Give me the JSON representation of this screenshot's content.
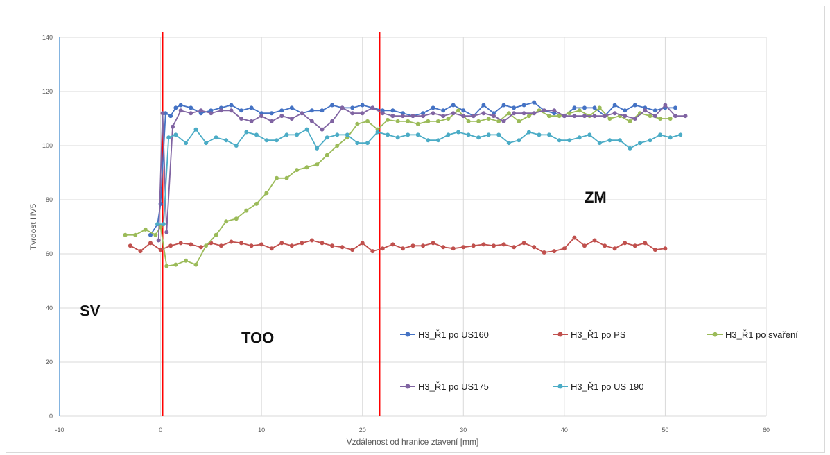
{
  "chart_data": {
    "type": "line",
    "xlabel": "Vzdálenost od hranice ztavení [mm]",
    "ylabel": "Tvrdost HV5",
    "xlim": [
      -10,
      60
    ],
    "ylim": [
      0,
      140
    ],
    "xticks": [
      "-10",
      "0",
      "10",
      "20",
      "30",
      "40",
      "50",
      "60"
    ],
    "yticks": [
      "0",
      "20",
      "40",
      "60",
      "80",
      "100",
      "120",
      "140"
    ],
    "grid": true,
    "legend_position": "bottom-right",
    "vertical_lines": [
      0.2,
      21.7
    ],
    "zone_labels": [
      {
        "text": "SV",
        "x": -8,
        "y": 37
      },
      {
        "text": "TOO",
        "x": 8,
        "y": 27
      },
      {
        "text": "ZM",
        "x": 42,
        "y": 79
      }
    ],
    "series": [
      {
        "name": "H3_Ř1 po US160",
        "color": "#4472c4",
        "points": [
          [
            -1,
            67
          ],
          [
            -0.3,
            71
          ],
          [
            0,
            78.5
          ],
          [
            0.5,
            112
          ],
          [
            1,
            111
          ],
          [
            1.5,
            114
          ],
          [
            2,
            115
          ],
          [
            3,
            114
          ],
          [
            4,
            112
          ],
          [
            5,
            113
          ],
          [
            6,
            114
          ],
          [
            7,
            115
          ],
          [
            8,
            113
          ],
          [
            9,
            114
          ],
          [
            10,
            112
          ],
          [
            11,
            112
          ],
          [
            12,
            113
          ],
          [
            13,
            114
          ],
          [
            14,
            112
          ],
          [
            15,
            113
          ],
          [
            16,
            113
          ],
          [
            17,
            115
          ],
          [
            18,
            114
          ],
          [
            19,
            114
          ],
          [
            20,
            115
          ],
          [
            21,
            114
          ],
          [
            22,
            113
          ],
          [
            23,
            113
          ],
          [
            24,
            112
          ],
          [
            25,
            111
          ],
          [
            26,
            112
          ],
          [
            27,
            114
          ],
          [
            28,
            113
          ],
          [
            29,
            115
          ],
          [
            30,
            113
          ],
          [
            31,
            111
          ],
          [
            32,
            115
          ],
          [
            33,
            112
          ],
          [
            34,
            115
          ],
          [
            35,
            114
          ],
          [
            36,
            115
          ],
          [
            37,
            116
          ],
          [
            38,
            113
          ],
          [
            39,
            112
          ],
          [
            40,
            111
          ],
          [
            41,
            114
          ],
          [
            42,
            114
          ],
          [
            43,
            114
          ],
          [
            44,
            111
          ],
          [
            45,
            115
          ],
          [
            46,
            113
          ],
          [
            47,
            115
          ],
          [
            48,
            114
          ],
          [
            49,
            113
          ],
          [
            50,
            114
          ],
          [
            51,
            114
          ]
        ]
      },
      {
        "name": "H3_Ř1 po PS",
        "color": "#c0504d",
        "points": [
          [
            -3,
            63
          ],
          [
            -2,
            61
          ],
          [
            -1,
            64
          ],
          [
            0,
            61.5
          ],
          [
            1,
            63
          ],
          [
            2,
            64
          ],
          [
            3,
            63.5
          ],
          [
            4,
            62.5
          ],
          [
            5,
            64
          ],
          [
            6,
            63
          ],
          [
            7,
            64.5
          ],
          [
            8,
            64
          ],
          [
            9,
            63
          ],
          [
            10,
            63.5
          ],
          [
            11,
            62
          ],
          [
            12,
            64
          ],
          [
            13,
            63
          ],
          [
            14,
            64
          ],
          [
            15,
            65
          ],
          [
            16,
            64
          ],
          [
            17,
            63
          ],
          [
            18,
            62.5
          ],
          [
            19,
            61.5
          ],
          [
            20,
            64
          ],
          [
            21,
            61
          ],
          [
            22,
            62
          ],
          [
            23,
            63.5
          ],
          [
            24,
            62
          ],
          [
            25,
            63
          ],
          [
            26,
            63
          ],
          [
            27,
            64
          ],
          [
            28,
            62.5
          ],
          [
            29,
            62
          ],
          [
            30,
            62.5
          ],
          [
            31,
            63
          ],
          [
            32,
            63.5
          ],
          [
            33,
            63
          ],
          [
            34,
            63.5
          ],
          [
            35,
            62.5
          ],
          [
            36,
            64
          ],
          [
            37,
            62.5
          ],
          [
            38,
            60.5
          ],
          [
            39,
            61
          ],
          [
            40,
            62
          ],
          [
            41,
            66
          ],
          [
            42,
            63
          ],
          [
            43,
            65
          ],
          [
            44,
            63
          ],
          [
            45,
            62
          ],
          [
            46,
            64
          ],
          [
            47,
            63
          ],
          [
            48,
            64
          ],
          [
            49,
            61.5
          ],
          [
            50,
            62
          ]
        ]
      },
      {
        "name": "H3_Ř1 po svaření",
        "color": "#9bbb59",
        "points": [
          [
            -3.5,
            67
          ],
          [
            -2.5,
            67
          ],
          [
            -1.5,
            69
          ],
          [
            -0.5,
            67
          ],
          [
            0,
            70
          ],
          [
            0.6,
            55.5
          ],
          [
            1.5,
            56
          ],
          [
            2.5,
            57.5
          ],
          [
            3.5,
            56
          ],
          [
            4.5,
            63
          ],
          [
            5.5,
            67
          ],
          [
            6.5,
            72
          ],
          [
            7.5,
            73
          ],
          [
            8.5,
            76
          ],
          [
            9.5,
            78.5
          ],
          [
            10.5,
            82.5
          ],
          [
            11.5,
            88
          ],
          [
            12.5,
            88
          ],
          [
            13.5,
            91
          ],
          [
            14.5,
            92
          ],
          [
            15.5,
            93
          ],
          [
            16.5,
            96.5
          ],
          [
            17.5,
            100
          ],
          [
            18.5,
            103
          ],
          [
            19.5,
            108
          ],
          [
            20.5,
            109
          ],
          [
            21.5,
            106
          ],
          [
            22.5,
            109.5
          ],
          [
            23.5,
            109
          ],
          [
            24.5,
            109
          ],
          [
            25.5,
            108
          ],
          [
            26.5,
            109
          ],
          [
            27.5,
            109
          ],
          [
            28.5,
            110
          ],
          [
            29.5,
            113
          ],
          [
            30.5,
            109
          ],
          [
            31.5,
            109
          ],
          [
            32.5,
            110
          ],
          [
            33.5,
            109
          ],
          [
            34.5,
            112
          ],
          [
            35.5,
            109
          ],
          [
            36.5,
            111
          ],
          [
            37.5,
            113
          ],
          [
            38.5,
            111
          ],
          [
            39.5,
            111
          ],
          [
            40.5,
            112
          ],
          [
            41.5,
            113
          ],
          [
            42.5,
            111
          ],
          [
            43.5,
            114
          ],
          [
            44.5,
            110
          ],
          [
            45.5,
            111
          ],
          [
            46.5,
            109
          ],
          [
            47.5,
            112
          ],
          [
            48.5,
            111
          ],
          [
            49.5,
            110
          ],
          [
            50.5,
            110
          ]
        ]
      },
      {
        "name": "H3_Ř1 po US175",
        "color": "#8064a2",
        "points": [
          [
            -0.2,
            65
          ],
          [
            0.2,
            112
          ],
          [
            0.6,
            68
          ],
          [
            1.2,
            107
          ],
          [
            2,
            113
          ],
          [
            3,
            112
          ],
          [
            4,
            113
          ],
          [
            5,
            112
          ],
          [
            6,
            113
          ],
          [
            7,
            113
          ],
          [
            8,
            110
          ],
          [
            9,
            109
          ],
          [
            10,
            111
          ],
          [
            11,
            109
          ],
          [
            12,
            111
          ],
          [
            13,
            110
          ],
          [
            14,
            112
          ],
          [
            15,
            109
          ],
          [
            16,
            106
          ],
          [
            17,
            109
          ],
          [
            18,
            114
          ],
          [
            19,
            112
          ],
          [
            20,
            112
          ],
          [
            21,
            114
          ],
          [
            22,
            112
          ],
          [
            23,
            111
          ],
          [
            24,
            111
          ],
          [
            25,
            111
          ],
          [
            26,
            111
          ],
          [
            27,
            112
          ],
          [
            28,
            111
          ],
          [
            29,
            112
          ],
          [
            30,
            111
          ],
          [
            31,
            111
          ],
          [
            32,
            112
          ],
          [
            33,
            111
          ],
          [
            34,
            109
          ],
          [
            35,
            112
          ],
          [
            36,
            112
          ],
          [
            37,
            112
          ],
          [
            38,
            113
          ],
          [
            39,
            113
          ],
          [
            40,
            111
          ],
          [
            41,
            111
          ],
          [
            42,
            111
          ],
          [
            43,
            111
          ],
          [
            44,
            111
          ],
          [
            45,
            112
          ],
          [
            46,
            111
          ],
          [
            47,
            110
          ],
          [
            48,
            113
          ],
          [
            49,
            111
          ],
          [
            50,
            115
          ],
          [
            51,
            111
          ],
          [
            52,
            111
          ]
        ]
      },
      {
        "name": "H3_Ř1 po US 190",
        "color": "#4bacc6",
        "points": [
          [
            -0.3,
            71
          ],
          [
            0.3,
            71
          ],
          [
            0.8,
            103
          ],
          [
            1.5,
            104
          ],
          [
            2.5,
            101
          ],
          [
            3.5,
            106
          ],
          [
            4.5,
            101
          ],
          [
            5.5,
            103
          ],
          [
            6.5,
            102
          ],
          [
            7.5,
            100
          ],
          [
            8.5,
            105
          ],
          [
            9.5,
            104
          ],
          [
            10.5,
            102
          ],
          [
            11.5,
            102
          ],
          [
            12.5,
            104
          ],
          [
            13.5,
            104
          ],
          [
            14.5,
            106
          ],
          [
            15.5,
            99
          ],
          [
            16.5,
            103
          ],
          [
            17.5,
            104
          ],
          [
            18.5,
            104
          ],
          [
            19.5,
            101
          ],
          [
            20.5,
            101
          ],
          [
            21.5,
            105
          ],
          [
            22.5,
            104
          ],
          [
            23.5,
            103
          ],
          [
            24.5,
            104
          ],
          [
            25.5,
            104
          ],
          [
            26.5,
            102
          ],
          [
            27.5,
            102
          ],
          [
            28.5,
            104
          ],
          [
            29.5,
            105
          ],
          [
            30.5,
            104
          ],
          [
            31.5,
            103
          ],
          [
            32.5,
            104
          ],
          [
            33.5,
            104
          ],
          [
            34.5,
            101
          ],
          [
            35.5,
            102
          ],
          [
            36.5,
            105
          ],
          [
            37.5,
            104
          ],
          [
            38.5,
            104
          ],
          [
            39.5,
            102
          ],
          [
            40.5,
            102
          ],
          [
            41.5,
            103
          ],
          [
            42.5,
            104
          ],
          [
            43.5,
            101
          ],
          [
            44.5,
            102
          ],
          [
            45.5,
            102
          ],
          [
            46.5,
            99
          ],
          [
            47.5,
            101
          ],
          [
            48.5,
            102
          ],
          [
            49.5,
            104
          ],
          [
            50.5,
            103
          ],
          [
            51.5,
            104
          ]
        ]
      }
    ]
  }
}
